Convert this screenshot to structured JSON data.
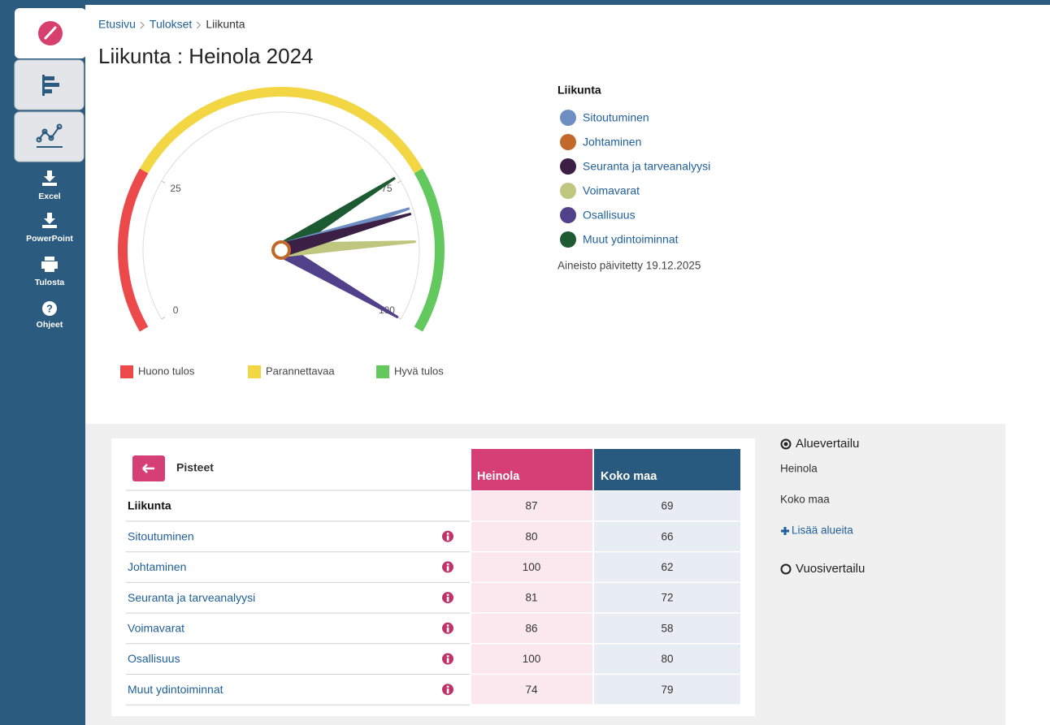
{
  "sidebar": {
    "tools": [
      "Excel",
      "PowerPoint",
      "Tulosta",
      "Ohjeet"
    ]
  },
  "breadcrumb": [
    "Etusivu",
    "Tulokset",
    "Liikunta"
  ],
  "title": "Liikunta : Heinola 2024",
  "gauge": {
    "scale": [
      0,
      100
    ],
    "ticks": [
      0,
      25,
      75,
      100
    ],
    "bands": [
      {
        "name": "Huono tulos",
        "color": "#ec4a4a",
        "from": 0,
        "to": 25
      },
      {
        "name": "Parannettavaa",
        "color": "#f2d644",
        "from": 25,
        "to": 75
      },
      {
        "name": "Hyvä tulos",
        "color": "#63c95f",
        "from": 75,
        "to": 100
      }
    ],
    "needle_colors": [
      "#6e8fc3",
      "#c0692b",
      "#3b1f45",
      "#bec67f",
      "#51418a",
      "#1c5a31"
    ]
  },
  "updated": "Aineisto päivitetty 19.12.2025",
  "table": {
    "header": "Pisteet",
    "columns": [
      "Heinola",
      "Koko maa"
    ],
    "rows": [
      [
        "Liikunta",
        87,
        69
      ],
      [
        "Sitoutuminen",
        80,
        66
      ],
      [
        "Johtaminen",
        100,
        62
      ],
      [
        "Seuranta ja tarveanalyysi",
        81,
        72
      ],
      [
        "Voimavarat",
        86,
        58
      ],
      [
        "Osallisuus",
        100,
        80
      ],
      [
        "Muut ydintoiminnat",
        74,
        79
      ]
    ]
  },
  "comparison": {
    "area": "Aluevertailu",
    "regions": [
      "Heinola",
      "Koko maa"
    ],
    "add": "Lisää alueita",
    "year": "Vuosivertailu"
  }
}
